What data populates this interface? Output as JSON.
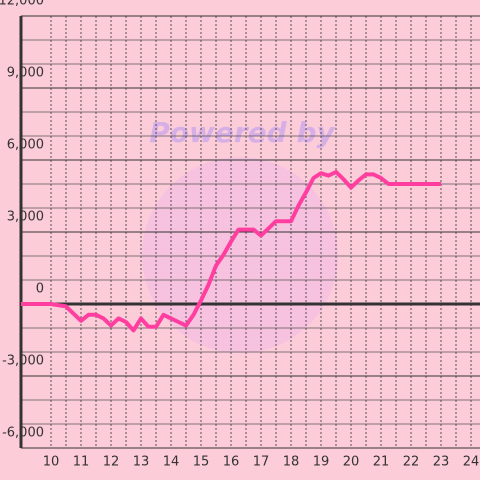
{
  "chart_data": {
    "type": "line",
    "watermark": "Powered by",
    "x": [
      9,
      10,
      10.5,
      11,
      11.25,
      11.5,
      11.75,
      12,
      12.25,
      12.5,
      12.75,
      13,
      13.25,
      13.5,
      13.75,
      14,
      14.25,
      14.5,
      14.75,
      15,
      15.25,
      15.5,
      15.75,
      16,
      16.25,
      16.5,
      16.75,
      17,
      17.25,
      17.5,
      17.75,
      18,
      18.25,
      18.5,
      18.75,
      19,
      19.25,
      19.5,
      19.75,
      20,
      20.25,
      20.5,
      20.75,
      21,
      21.25,
      23
    ],
    "series": [
      {
        "color": "#ff3ea0",
        "values": [
          0,
          0,
          -100,
          -700,
          -450,
          -450,
          -600,
          -900,
          -600,
          -750,
          -1100,
          -600,
          -950,
          -950,
          -450,
          -600,
          -750,
          -900,
          -450,
          150,
          800,
          1600,
          2050,
          2600,
          3100,
          3100,
          3100,
          2850,
          3150,
          3450,
          3450,
          3450,
          4100,
          4650,
          5250,
          5450,
          5350,
          5500,
          5200,
          4850,
          5150,
          5400,
          5400,
          5250,
          5000,
          5000
        ]
      }
    ],
    "xlim": [
      9,
      24.3
    ],
    "ylim": [
      -6000,
      12000
    ],
    "xticks": [
      10,
      11,
      12,
      13,
      14,
      15,
      16,
      17,
      18,
      19,
      20,
      21,
      22,
      23,
      24
    ],
    "yticks": [
      {
        "value": -6000,
        "label": "-6,000"
      },
      {
        "value": -3000,
        "label": "-3,000"
      },
      0,
      {
        "value": 3000,
        "label": "3,000"
      },
      {
        "value": 6000,
        "label": "6,000"
      },
      {
        "value": 9000,
        "label": "9,000"
      },
      {
        "value": 12000,
        "label": "12,000"
      }
    ],
    "grid": true
  }
}
